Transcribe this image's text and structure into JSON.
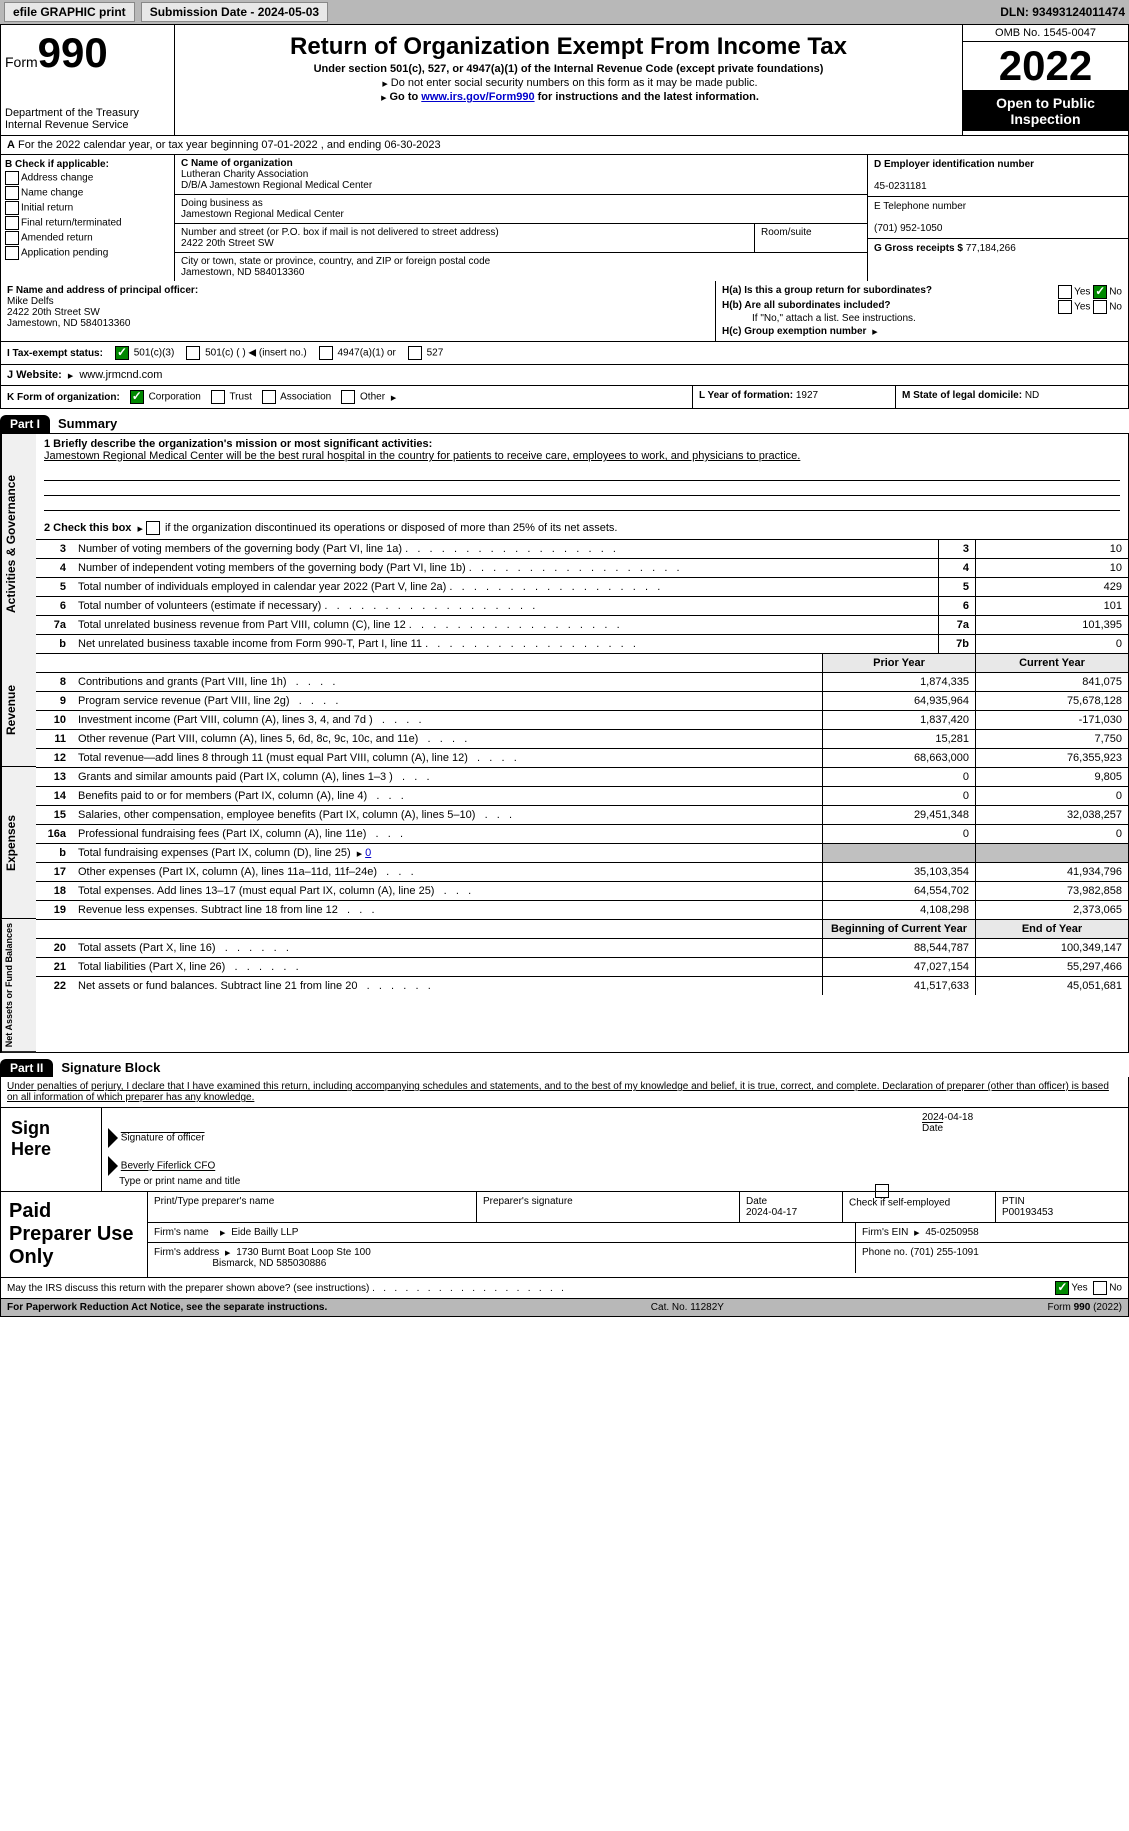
{
  "topbar": {
    "efile": "efile GRAPHIC print",
    "submission_label": "Submission Date - 2024-05-03",
    "dln": "DLN: 93493124011474"
  },
  "header": {
    "form_word": "Form",
    "form_num": "990",
    "dept": "Department of the Treasury",
    "irs": "Internal Revenue Service",
    "title": "Return of Organization Exempt From Income Tax",
    "subtitle": "Under section 501(c), 527, or 4947(a)(1) of the Internal Revenue Code (except private foundations)",
    "ssn_note": "Do not enter social security numbers on this form as it may be made public.",
    "goto_prefix": "Go to ",
    "goto_link": "www.irs.gov/Form990",
    "goto_suffix": " for instructions and the latest information.",
    "omb": "OMB No. 1545-0047",
    "year": "2022",
    "open": "Open to Public Inspection"
  },
  "lineA": {
    "text": "For the 2022 calendar year, or tax year beginning 07-01-2022   , and ending 06-30-2023"
  },
  "colB": {
    "heading": "B Check if applicable:",
    "addr": "Address change",
    "name": "Name change",
    "init": "Initial return",
    "final": "Final return/terminated",
    "amend": "Amended return",
    "app": "Application pending"
  },
  "colC": {
    "name_label": "C Name of organization",
    "name1": "Lutheran Charity Association",
    "name2": "D/B/A Jamestown Regional Medical Center",
    "dba_label": "Doing business as",
    "dba": "Jamestown Regional Medical Center",
    "addr_label": "Number and street (or P.O. box if mail is not delivered to street address)",
    "room_label": "Room/suite",
    "addr": "2422 20th Street SW",
    "city_label": "City or town, state or province, country, and ZIP or foreign postal code",
    "city": "Jamestown, ND  584013360"
  },
  "colD": {
    "ein_label": "D Employer identification number",
    "ein": "45-0231181",
    "tel_label": "E Telephone number",
    "tel": "(701) 952-1050",
    "gross_label": "G Gross receipts $",
    "gross": "77,184,266"
  },
  "rowF": {
    "label": "F Name and address of principal officer:",
    "name": "Mike Delfs",
    "addr1": "2422 20th Street SW",
    "addr2": "Jamestown, ND  584013360"
  },
  "rowH": {
    "ha": "H(a)  Is this a group return for subordinates?",
    "hb": "H(b)  Are all subordinates included?",
    "hb_note": "If \"No,\" attach a list. See instructions.",
    "hc": "H(c)  Group exemption number",
    "yes": "Yes",
    "no": "No"
  },
  "rowI": {
    "label": "I  Tax-exempt status:",
    "opt1": "501(c)(3)",
    "opt2": "501(c) (  )",
    "opt2_note": "(insert no.)",
    "opt3": "4947(a)(1) or",
    "opt4": "527"
  },
  "rowJ": {
    "label": "J  Website:",
    "url": "www.jrmcnd.com"
  },
  "rowK": {
    "label": "K Form of organization:",
    "corp": "Corporation",
    "trust": "Trust",
    "assoc": "Association",
    "other": "Other",
    "year_label": "L Year of formation:",
    "year": "1927",
    "state_label": "M State of legal domicile:",
    "state": "ND"
  },
  "part1": {
    "hdr": "Part I",
    "title": "Summary",
    "q1_label": "1  Briefly describe the organization's mission or most significant activities:",
    "q1_text": "Jamestown Regional Medical Center will be the best rural hospital in the country for patients to receive care, employees to work, and physicians to practice.",
    "q2": "2  Check this box",
    "q2_suffix": "if the organization discontinued its operations or disposed of more than 25% of its net assets.",
    "prior_year": "Prior Year",
    "current_year": "Current Year",
    "begin_year": "Beginning of Current Year",
    "end_year": "End of Year",
    "side_activities": "Activities & Governance",
    "side_revenue": "Revenue",
    "side_expenses": "Expenses",
    "side_net": "Net Assets or Fund Balances",
    "rows_gov": [
      {
        "n": "3",
        "label": "Number of voting members of the governing body (Part VI, line 1a)",
        "box": "3",
        "val": "10"
      },
      {
        "n": "4",
        "label": "Number of independent voting members of the governing body (Part VI, line 1b)",
        "box": "4",
        "val": "10"
      },
      {
        "n": "5",
        "label": "Total number of individuals employed in calendar year 2022 (Part V, line 2a)",
        "box": "5",
        "val": "429"
      },
      {
        "n": "6",
        "label": "Total number of volunteers (estimate if necessary)",
        "box": "6",
        "val": "101"
      },
      {
        "n": "7a",
        "label": "Total unrelated business revenue from Part VIII, column (C), line 12",
        "box": "7a",
        "val": "101,395"
      },
      {
        "n": "b",
        "label": "Net unrelated business taxable income from Form 990-T, Part I, line 11",
        "box": "7b",
        "val": "0"
      }
    ],
    "rows_rev": [
      {
        "n": "8",
        "label": "Contributions and grants (Part VIII, line 1h)",
        "p": "1,874,335",
        "c": "841,075"
      },
      {
        "n": "9",
        "label": "Program service revenue (Part VIII, line 2g)",
        "p": "64,935,964",
        "c": "75,678,128"
      },
      {
        "n": "10",
        "label": "Investment income (Part VIII, column (A), lines 3, 4, and 7d )",
        "p": "1,837,420",
        "c": "-171,030"
      },
      {
        "n": "11",
        "label": "Other revenue (Part VIII, column (A), lines 5, 6d, 8c, 9c, 10c, and 11e)",
        "p": "15,281",
        "c": "7,750"
      },
      {
        "n": "12",
        "label": "Total revenue—add lines 8 through 11 (must equal Part VIII, column (A), line 12)",
        "p": "68,663,000",
        "c": "76,355,923"
      }
    ],
    "rows_exp": [
      {
        "n": "13",
        "label": "Grants and similar amounts paid (Part IX, column (A), lines 1–3 )",
        "p": "0",
        "c": "9,805"
      },
      {
        "n": "14",
        "label": "Benefits paid to or for members (Part IX, column (A), line 4)",
        "p": "0",
        "c": "0"
      },
      {
        "n": "15",
        "label": "Salaries, other compensation, employee benefits (Part IX, column (A), lines 5–10)",
        "p": "29,451,348",
        "c": "32,038,257"
      },
      {
        "n": "16a",
        "label": "Professional fundraising fees (Part IX, column (A), line 11e)",
        "p": "0",
        "c": "0"
      },
      {
        "n": "b",
        "label": "Total fundraising expenses (Part IX, column (D), line 25)",
        "fundraising": "0",
        "shaded": true
      },
      {
        "n": "17",
        "label": "Other expenses (Part IX, column (A), lines 11a–11d, 11f–24e)",
        "p": "35,103,354",
        "c": "41,934,796"
      },
      {
        "n": "18",
        "label": "Total expenses. Add lines 13–17 (must equal Part IX, column (A), line 25)",
        "p": "64,554,702",
        "c": "73,982,858"
      },
      {
        "n": "19",
        "label": "Revenue less expenses. Subtract line 18 from line 12",
        "p": "4,108,298",
        "c": "2,373,065"
      }
    ],
    "rows_net": [
      {
        "n": "20",
        "label": "Total assets (Part X, line 16)",
        "p": "88,544,787",
        "c": "100,349,147"
      },
      {
        "n": "21",
        "label": "Total liabilities (Part X, line 26)",
        "p": "47,027,154",
        "c": "55,297,466"
      },
      {
        "n": "22",
        "label": "Net assets or fund balances. Subtract line 21 from line 20",
        "p": "41,517,633",
        "c": "45,051,681"
      }
    ]
  },
  "part2": {
    "hdr": "Part II",
    "title": "Signature Block",
    "declaration": "Under penalties of perjury, I declare that I have examined this return, including accompanying schedules and statements, and to the best of my knowledge and belief, it is true, correct, and complete. Declaration of preparer (other than officer) is based on all information of which preparer has any knowledge.",
    "sign_here": "Sign Here",
    "sig_officer": "Signature of officer",
    "date": "Date",
    "sig_date": "2024-04-18",
    "officer_name": "Beverly Fiferlick CFO",
    "type_name": "Type or print name and title",
    "paid_label": "Paid Preparer Use Only",
    "print_name_label": "Print/Type preparer's name",
    "prep_sig_label": "Preparer's signature",
    "prep_date_label": "Date",
    "prep_date": "2024-04-17",
    "check_self": "Check         if self-employed",
    "ptin_label": "PTIN",
    "ptin": "P00193453",
    "firm_name_label": "Firm's name",
    "firm_name": "Eide Bailly LLP",
    "firm_ein_label": "Firm's EIN",
    "firm_ein": "45-0250958",
    "firm_addr_label": "Firm's address",
    "firm_addr1": "1730 Burnt Boat Loop Ste 100",
    "firm_addr2": "Bismarck, ND  585030886",
    "phone_label": "Phone no.",
    "phone": "(701) 255-1091",
    "discuss": "May the IRS discuss this return with the preparer shown above? (see instructions)",
    "yes": "Yes",
    "no": "No"
  },
  "footer": {
    "paperwork": "For Paperwork Reduction Act Notice, see the separate instructions.",
    "cat": "Cat. No. 11282Y",
    "form": "Form 990 (2022)"
  }
}
